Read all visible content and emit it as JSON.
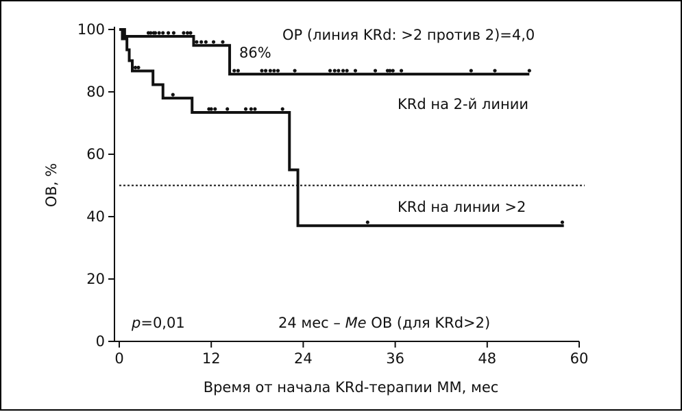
{
  "chart_data": {
    "type": "line",
    "subtype": "kaplan-meier",
    "title": "",
    "xlabel": "Время от начала KRd-терапии ММ, мес",
    "ylabel": "ОВ, %",
    "xlim": [
      0,
      60
    ],
    "ylim": [
      0,
      100
    ],
    "xticks": [
      "0",
      "12",
      "24",
      "36",
      "48",
      "60"
    ],
    "yticks": [
      "0",
      "20",
      "40",
      "60",
      "80",
      "100"
    ],
    "grid": false,
    "reference_line": {
      "y": 50,
      "style": "dotted"
    },
    "series": [
      {
        "name": "KRd на 2-й линии",
        "steps": [
          [
            0,
            100
          ],
          [
            0.7,
            97.8
          ],
          [
            9.7,
            94.9
          ],
          [
            14.4,
            85.7
          ],
          [
            53.5,
            85.7
          ]
        ],
        "censored": [
          [
            3.8,
            97.8
          ],
          [
            4.1,
            97.8
          ],
          [
            4.5,
            97.8
          ],
          [
            4.7,
            97.8
          ],
          [
            5.2,
            97.8
          ],
          [
            5.7,
            97.8
          ],
          [
            6.4,
            97.8
          ],
          [
            7.1,
            97.8
          ],
          [
            8.4,
            97.8
          ],
          [
            8.9,
            97.8
          ],
          [
            9.3,
            97.8
          ],
          [
            10.1,
            94.9
          ],
          [
            10.7,
            94.9
          ],
          [
            11.3,
            94.9
          ],
          [
            12.3,
            94.9
          ],
          [
            13.5,
            94.9
          ],
          [
            15.0,
            85.7
          ],
          [
            15.5,
            85.7
          ],
          [
            18.6,
            85.7
          ],
          [
            19.1,
            85.7
          ],
          [
            19.7,
            85.7
          ],
          [
            20.2,
            85.7
          ],
          [
            20.7,
            85.7
          ],
          [
            22.9,
            85.7
          ],
          [
            27.5,
            85.7
          ],
          [
            28.1,
            85.7
          ],
          [
            28.6,
            85.7
          ],
          [
            29.2,
            85.7
          ],
          [
            29.7,
            85.7
          ],
          [
            30.8,
            85.7
          ],
          [
            33.4,
            85.7
          ],
          [
            35.0,
            85.7
          ],
          [
            35.3,
            85.7
          ],
          [
            35.7,
            85.7
          ],
          [
            36.8,
            85.7
          ],
          [
            45.9,
            85.7
          ],
          [
            49.0,
            85.7
          ],
          [
            53.5,
            85.7
          ]
        ]
      },
      {
        "name": "KRd на линии >2",
        "steps": [
          [
            0,
            100
          ],
          [
            0.4,
            97
          ],
          [
            1.0,
            93.5
          ],
          [
            1.3,
            90
          ],
          [
            1.7,
            86.7
          ],
          [
            4.4,
            82.3
          ],
          [
            5.7,
            78
          ],
          [
            9.5,
            73.4
          ],
          [
            22.2,
            55
          ],
          [
            23.3,
            37.1
          ],
          [
            58,
            37.1
          ]
        ],
        "censored": [
          [
            2.1,
            86.7
          ],
          [
            2.5,
            86.7
          ],
          [
            7.0,
            78
          ],
          [
            11.7,
            73.4
          ],
          [
            12.0,
            73.4
          ],
          [
            12.5,
            73.4
          ],
          [
            14.1,
            73.4
          ],
          [
            16.5,
            73.4
          ],
          [
            17.2,
            73.4
          ],
          [
            17.7,
            73.4
          ],
          [
            21.3,
            73.4
          ],
          [
            32.4,
            37.1
          ],
          [
            57.8,
            37.1
          ]
        ]
      }
    ],
    "annotations": {
      "hr": "ОР (линия KRd: >2 против 2)=4,0",
      "pct": "86%",
      "series1_label": "KRd на 2-й линии",
      "series2_label": "KRd на линии >2",
      "p_italic": "p",
      "p_value": "=0,01",
      "median_prefix": "24 мес – ",
      "median_italic": "Me",
      "median_suffix": " ОВ (для KRd>2)"
    }
  }
}
